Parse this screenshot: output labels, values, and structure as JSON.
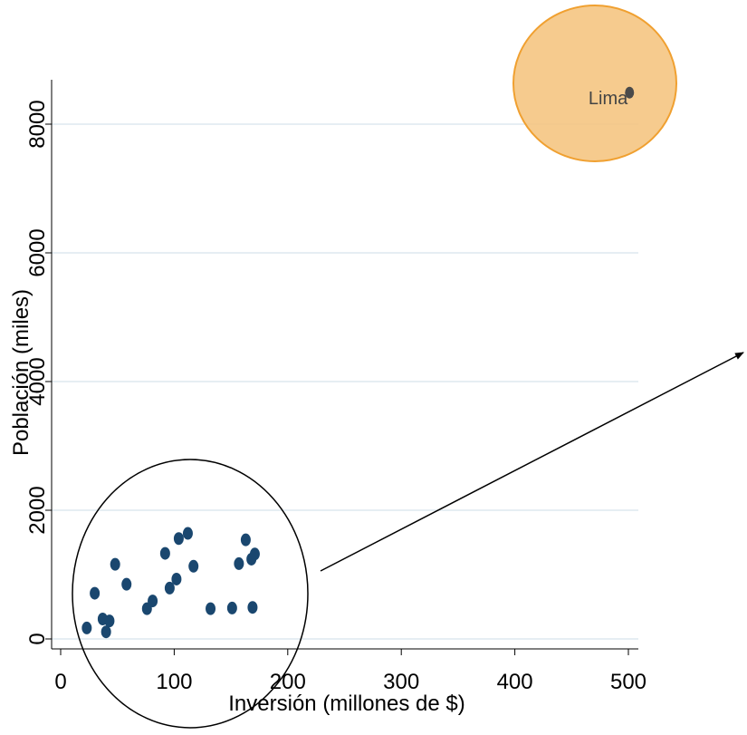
{
  "chart_data": {
    "type": "scatter",
    "title": "",
    "xlabel": "Inversión  (millones de $)",
    "ylabel": "Población (miles)",
    "xlim": [
      0,
      500
    ],
    "ylim": [
      0,
      8000
    ],
    "xticks": [
      "0",
      "100",
      "200",
      "300",
      "400",
      "500"
    ],
    "yticks": [
      "0",
      "2000",
      "4000",
      "6000",
      "8000"
    ],
    "grid": "horizontal",
    "point_color": "#1a476f",
    "highlight_color": "#f5c27a",
    "highlight_stroke": "#f0a030",
    "points": [
      {
        "x": 23,
        "y": 170
      },
      {
        "x": 30,
        "y": 710
      },
      {
        "x": 37,
        "y": 310
      },
      {
        "x": 40,
        "y": 110
      },
      {
        "x": 43,
        "y": 280
      },
      {
        "x": 48,
        "y": 1160
      },
      {
        "x": 58,
        "y": 850
      },
      {
        "x": 76,
        "y": 470
      },
      {
        "x": 81,
        "y": 590
      },
      {
        "x": 92,
        "y": 1330
      },
      {
        "x": 96,
        "y": 790
      },
      {
        "x": 102,
        "y": 930
      },
      {
        "x": 104,
        "y": 1560
      },
      {
        "x": 112,
        "y": 1640
      },
      {
        "x": 117,
        "y": 1130
      },
      {
        "x": 132,
        "y": 470
      },
      {
        "x": 151,
        "y": 480
      },
      {
        "x": 157,
        "y": 1170
      },
      {
        "x": 163,
        "y": 1540
      },
      {
        "x": 168,
        "y": 1240
      },
      {
        "x": 169,
        "y": 490
      },
      {
        "x": 171,
        "y": 1320
      }
    ],
    "highlight_point": {
      "x": 501,
      "y": 8490,
      "label": "Lima"
    }
  }
}
